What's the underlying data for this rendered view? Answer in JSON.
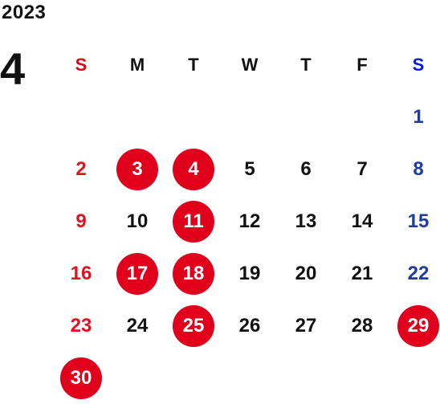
{
  "calendar": {
    "year": "2023",
    "month": "4",
    "weekdays": [
      "S",
      "M",
      "T",
      "W",
      "T",
      "F",
      "S"
    ],
    "weeks": [
      [
        {
          "d": ""
        },
        {
          "d": ""
        },
        {
          "d": ""
        },
        {
          "d": ""
        },
        {
          "d": ""
        },
        {
          "d": ""
        },
        {
          "d": "1"
        }
      ],
      [
        {
          "d": "2"
        },
        {
          "d": "3",
          "hl": true
        },
        {
          "d": "4",
          "hl": true
        },
        {
          "d": "5"
        },
        {
          "d": "6"
        },
        {
          "d": "7"
        },
        {
          "d": "8"
        }
      ],
      [
        {
          "d": "9"
        },
        {
          "d": "10"
        },
        {
          "d": "11",
          "hl": true
        },
        {
          "d": "12"
        },
        {
          "d": "13"
        },
        {
          "d": "14"
        },
        {
          "d": "15"
        }
      ],
      [
        {
          "d": "16"
        },
        {
          "d": "17",
          "hl": true
        },
        {
          "d": "18",
          "hl": true
        },
        {
          "d": "19"
        },
        {
          "d": "20"
        },
        {
          "d": "21"
        },
        {
          "d": "22"
        }
      ],
      [
        {
          "d": "23"
        },
        {
          "d": "24"
        },
        {
          "d": "25",
          "hl": true
        },
        {
          "d": "26"
        },
        {
          "d": "27"
        },
        {
          "d": "28"
        },
        {
          "d": "29",
          "hl": true
        }
      ],
      [
        {
          "d": "30",
          "hl": true
        },
        {
          "d": ""
        },
        {
          "d": ""
        },
        {
          "d": ""
        },
        {
          "d": ""
        },
        {
          "d": ""
        },
        {
          "d": ""
        }
      ]
    ]
  },
  "colors": {
    "sunday": "#e0121f",
    "saturday": "#1f3c9c",
    "highlight": "#e0001b",
    "text": "#111111"
  }
}
